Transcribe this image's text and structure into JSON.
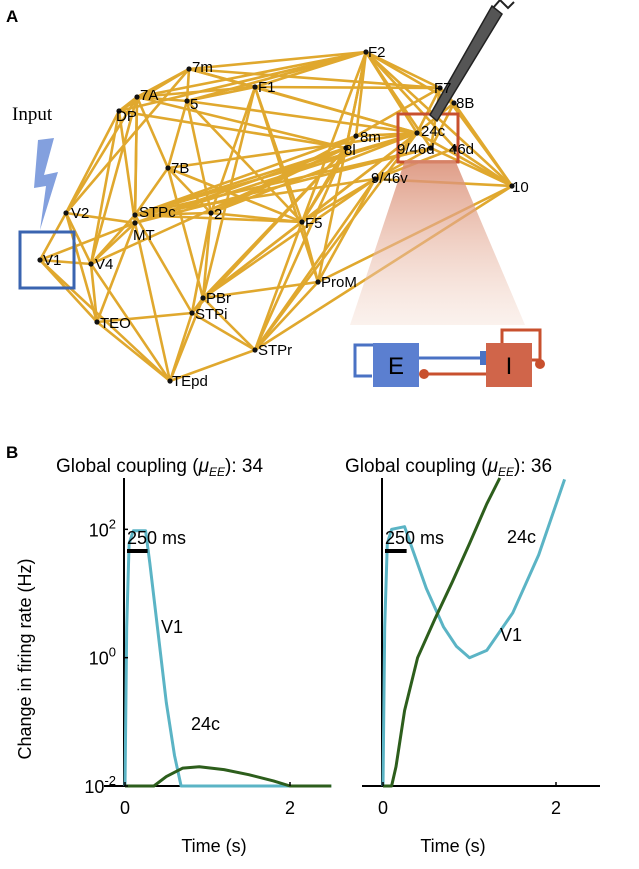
{
  "panel_a": {
    "label": "A",
    "input_label": "Input",
    "areas": [
      "V1",
      "V2",
      "V4",
      "MT",
      "TEO",
      "TEpd",
      "DP",
      "7A",
      "7m",
      "5",
      "F1",
      "F2",
      "F7",
      "8B",
      "24c",
      "9/46d",
      "46d",
      "8m",
      "8l",
      "9/46v",
      "10",
      "7B",
      "STPc",
      "2",
      "F5",
      "ProM",
      "PBr",
      "STPi",
      "STPr"
    ],
    "inset": {
      "E_label": "E",
      "I_label": "I"
    },
    "colors": {
      "edge": "#e0a82e",
      "v1_box": "#3a64b0",
      "target_box": "#c8502e",
      "E": "#5b7fd0",
      "I": "#d0654a"
    }
  },
  "panel_b": {
    "label": "B",
    "chart_data": [
      {
        "type": "line",
        "title": "Global coupling (μEE): 34",
        "title_prefix": "Global coupling (",
        "title_symbol": "μ",
        "title_sub": "EE",
        "title_suffix": "): 34",
        "ylabel": "Change in firing rate (Hz)",
        "xlabel": "Time (s)",
        "xlim": [
          -0.3,
          2.5
        ],
        "ylim_log10": [
          -2,
          2.8
        ],
        "yscale": "log",
        "xticks": [
          "0",
          "2"
        ],
        "yticks": [
          "10^-2",
          "10^0",
          "10^2"
        ],
        "scalebar": "250 ms",
        "series": [
          {
            "name": "V1",
            "color": "#5bb4c5",
            "x": [
              0.0,
              0.02,
              0.05,
              0.1,
              0.25,
              0.3,
              0.4,
              0.5,
              0.6,
              0.68,
              2.5
            ],
            "y": [
              0.01,
              3.0,
              60,
              95,
              95,
              30,
              2.5,
              0.2,
              0.03,
              0.01,
              0.01
            ]
          },
          {
            "name": "24c",
            "color": "#2d5e1c",
            "x": [
              0.0,
              0.35,
              0.5,
              0.7,
              0.9,
              1.2,
              1.5,
              1.8,
              2.0,
              2.5
            ],
            "y": [
              0.01,
              0.01,
              0.014,
              0.019,
              0.02,
              0.018,
              0.015,
              0.012,
              0.01,
              0.01
            ]
          }
        ]
      },
      {
        "type": "line",
        "title": "Global coupling (μEE): 36",
        "title_prefix": "Global coupling (",
        "title_symbol": "μ",
        "title_sub": "EE",
        "title_suffix": "): 36",
        "xlabel": "Time (s)",
        "xlim": [
          -0.3,
          2.5
        ],
        "ylim_log10": [
          -2,
          2.8
        ],
        "yscale": "log",
        "xticks": [
          "0",
          "2"
        ],
        "scalebar": "250 ms",
        "series": [
          {
            "name": "V1",
            "color": "#5bb4c5",
            "x": [
              0.0,
              0.02,
              0.05,
              0.1,
              0.25,
              0.35,
              0.5,
              0.7,
              0.85,
              1.0,
              1.2,
              1.5,
              1.8,
              2.1
            ],
            "y": [
              0.01,
              3.0,
              60,
              100,
              110,
              45,
              12,
              3,
              1.5,
              1.0,
              1.3,
              5,
              40,
              600
            ]
          },
          {
            "name": "24c",
            "color": "#2d5e1c",
            "x": [
              0.0,
              0.1,
              0.15,
              0.25,
              0.4,
              0.6,
              0.8,
              1.0,
              1.2,
              1.35
            ],
            "y": [
              0.01,
              0.01,
              0.02,
              0.15,
              1.0,
              4,
              15,
              60,
              250,
              700
            ]
          }
        ]
      }
    ]
  }
}
